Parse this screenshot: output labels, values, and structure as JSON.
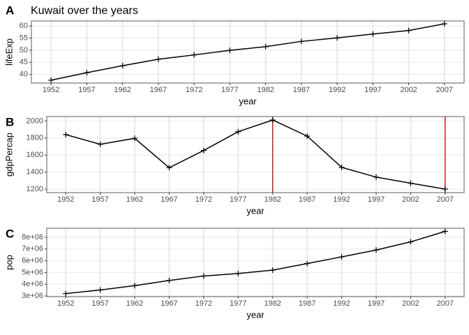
{
  "chart_data": [
    {
      "type": "line",
      "panel_label": "A",
      "title": "Kuwait over the years",
      "x_label": "year",
      "y_label": "lifeExp",
      "x": [
        1952,
        1957,
        1962,
        1967,
        1972,
        1977,
        1982,
        1987,
        1992,
        1997,
        2002,
        2007
      ],
      "values": [
        37.579,
        40.696,
        43.59,
        46.243,
        48.042,
        49.923,
        51.461,
        53.636,
        55.089,
        56.671,
        58.137,
        60.916
      ],
      "color": "#000000",
      "xlim": [
        1949.25,
        2009.75
      ],
      "xticks": [
        1952,
        1957,
        1962,
        1967,
        1972,
        1977,
        1982,
        1987,
        1992,
        1997,
        2002,
        2007
      ],
      "ylim": [
        36.4,
        62.1
      ],
      "yticks": [
        40,
        45,
        50,
        55,
        60
      ],
      "grid": true
    },
    {
      "type": "line",
      "panel_label": "B",
      "x_label": "year",
      "y_label": "gdpPercap",
      "x": [
        1952,
        1957,
        1962,
        1967,
        1972,
        1977,
        1982,
        1987,
        1992,
        1997,
        2002,
        2007
      ],
      "values": [
        1840.37,
        1726.89,
        1796.59,
        1452.06,
        1654.46,
        1874.3,
        2011.16,
        1823.02,
        1456.31,
        1341.73,
        1270.36,
        1201.64
      ],
      "color": "#000000",
      "xlim": [
        1949.25,
        2009.75
      ],
      "xticks": [
        1952,
        1957,
        1962,
        1967,
        1972,
        1977,
        1982,
        1987,
        1992,
        1997,
        2002,
        2007
      ],
      "ylim": [
        1160,
        2052
      ],
      "yticks": [
        1200,
        1400,
        1600,
        1800,
        2000
      ],
      "grid": true,
      "vlines": [
        1982,
        2007
      ],
      "vline_color": "#e00000"
    },
    {
      "type": "line",
      "panel_label": "C",
      "x_label": "year",
      "y_label": "pop",
      "x": [
        1952,
        1957,
        1962,
        1967,
        1972,
        1977,
        1982,
        1987,
        1992,
        1997,
        2002,
        2007
      ],
      "values": [
        3201488,
        3507701,
        3880130,
        4318137,
        4698301,
        4908554,
        5198399,
        5756203,
        6326682,
        6913545,
        7607651,
        8502814
      ],
      "color": "#000000",
      "xlim": [
        1949.25,
        2009.75
      ],
      "xticks": [
        1952,
        1957,
        1962,
        1967,
        1972,
        1977,
        1982,
        1987,
        1992,
        1997,
        2002,
        2007
      ],
      "ylim": [
        2940000,
        8770000
      ],
      "yticks": [
        {
          "value": 3000000,
          "label": "3e+06"
        },
        {
          "value": 4000000,
          "label": "4e+06"
        },
        {
          "value": 5000000,
          "label": "5e+06"
        },
        {
          "value": 6000000,
          "label": "6e+06"
        },
        {
          "value": 7000000,
          "label": "7e+06"
        },
        {
          "value": 8000000,
          "label": "8e+06"
        }
      ],
      "grid": true
    }
  ]
}
